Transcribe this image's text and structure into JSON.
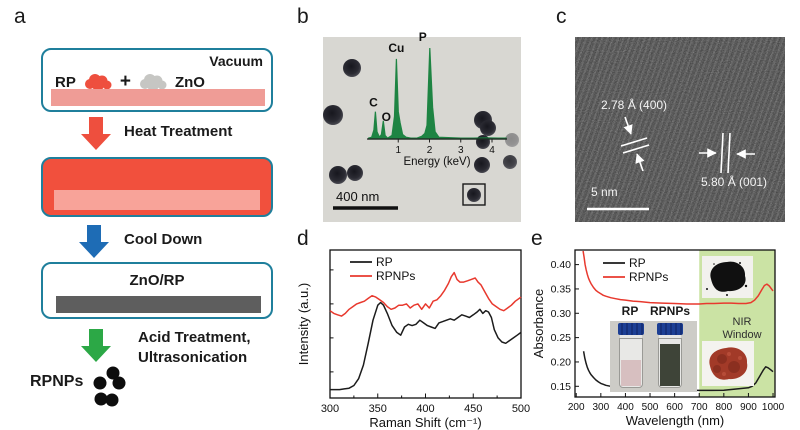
{
  "panels": {
    "a": {
      "label": "a",
      "vacuum": "Vacuum",
      "rp": "RP",
      "plus": "+",
      "zno": "ZnO",
      "heat": "Heat Treatment",
      "cool": "Cool Down",
      "znorp": "ZnO/RP",
      "acid1": "Acid Treatment,",
      "acid2": "Ultrasonication",
      "product": "RPNPs"
    },
    "b": {
      "label": "b",
      "scale_bar": "400 nm",
      "particles": [
        [
          29,
          31,
          9,
          1
        ],
        [
          10,
          78,
          10,
          1
        ],
        [
          15,
          138,
          9,
          1
        ],
        [
          32,
          136,
          8,
          1
        ],
        [
          160,
          83,
          9,
          1
        ],
        [
          165,
          91,
          8,
          1
        ],
        [
          160,
          105,
          7,
          1
        ],
        [
          189,
          103,
          7,
          0.4
        ],
        [
          159,
          128,
          8,
          1
        ],
        [
          187,
          125,
          7,
          0.85
        ],
        [
          151,
          158,
          7,
          1
        ]
      ],
      "highlight_box": [
        140,
        147,
        22,
        21
      ]
    },
    "c": {
      "label": "c",
      "spacing_1": "2.78 Å (400)",
      "spacing_2": "5.80 Å (001)",
      "scale_bar": "5 nm"
    },
    "d": {
      "label": "d"
    },
    "e": {
      "label": "e",
      "nir_line1": "NIR",
      "nir_line2": "Window",
      "vial_left": "RP",
      "vial_right": "RPNPs"
    }
  },
  "colors": {
    "teal_border": "#1f7f9c",
    "red": "#f1503d",
    "pink_layer": "#ef9c96",
    "blue_arrow": "#1e6cb5",
    "green_arrow": "#2ca846",
    "gray_layer": "#5e5e5e",
    "eds_green": "#15803c",
    "nir_fill": "#cbe3a4",
    "curve_black": "#1c1c1c",
    "curve_red": "#e8392e"
  },
  "chart_data": [
    {
      "name": "eds",
      "type": "line",
      "location": "panel-b-inset",
      "title": "",
      "xlabel": "Energy (keV)",
      "ylabel": "",
      "xlim": [
        0,
        4.48
      ],
      "xticks": [
        1,
        2,
        3,
        4
      ],
      "color": "#15803c",
      "peak_labels": [
        {
          "label": "C",
          "x": 0.27,
          "v": 0.3
        },
        {
          "label": "O",
          "x": 0.52,
          "v": 0.2
        },
        {
          "label": "Cu",
          "x": 0.94,
          "v": 0.88
        },
        {
          "label": "P",
          "x": 2.01,
          "v": 1.0
        }
      ],
      "x": [
        0.05,
        0.15,
        0.22,
        0.27,
        0.32,
        0.4,
        0.46,
        0.52,
        0.58,
        0.66,
        0.8,
        0.88,
        0.94,
        1.0,
        1.06,
        1.14,
        1.25,
        1.4,
        1.6,
        1.75,
        1.85,
        1.92,
        2.01,
        2.1,
        2.18,
        2.3,
        2.6,
        3.0,
        3.4,
        3.8,
        4.2,
        4.45
      ],
      "y": [
        0.01,
        0.02,
        0.1,
        0.3,
        0.08,
        0.02,
        0.05,
        0.2,
        0.04,
        0.01,
        0.04,
        0.25,
        0.88,
        0.3,
        0.18,
        0.05,
        0.02,
        0.01,
        0.01,
        0.03,
        0.06,
        0.15,
        1.0,
        0.35,
        0.08,
        0.02,
        0.015,
        0.01,
        0.01,
        0.012,
        0.01,
        0.01
      ]
    },
    {
      "name": "raman",
      "type": "line",
      "location": "panel-d",
      "title": "",
      "xlabel": "Raman Shift (cm⁻¹)",
      "ylabel": "Intensity (a.u.)",
      "xlim": [
        300,
        500
      ],
      "xticks": [
        300,
        350,
        400,
        450,
        500
      ],
      "legend_position": "top-left",
      "series": [
        {
          "name": "RP",
          "color": "#1c1c1c",
          "x": [
            300,
            305,
            310,
            315,
            320,
            325,
            330,
            335,
            340,
            345,
            350,
            353,
            356,
            360,
            365,
            370,
            374,
            378,
            382,
            386,
            390,
            394,
            398,
            402,
            406,
            410,
            414,
            418,
            422,
            426,
            430,
            434,
            438,
            442,
            446,
            450,
            454,
            457,
            460,
            463,
            466,
            469,
            472,
            476,
            480,
            484,
            488,
            492,
            496,
            500
          ],
          "y": [
            0.04,
            0.04,
            0.04,
            0.045,
            0.05,
            0.07,
            0.12,
            0.22,
            0.38,
            0.55,
            0.66,
            0.68,
            0.66,
            0.6,
            0.51,
            0.46,
            0.44,
            0.5,
            0.52,
            0.51,
            0.52,
            0.55,
            0.53,
            0.51,
            0.5,
            0.49,
            0.53,
            0.54,
            0.55,
            0.56,
            0.55,
            0.57,
            0.59,
            0.58,
            0.57,
            0.59,
            0.61,
            0.63,
            0.6,
            0.62,
            0.61,
            0.57,
            0.48,
            0.42,
            0.39,
            0.38,
            0.4,
            0.42,
            0.44,
            0.46
          ]
        },
        {
          "name": "RPNPs",
          "color": "#e8392e",
          "x": [
            300,
            304,
            308,
            312,
            316,
            320,
            324,
            328,
            332,
            336,
            340,
            344,
            348,
            352,
            356,
            360,
            364,
            368,
            372,
            376,
            380,
            384,
            388,
            392,
            396,
            400,
            404,
            408,
            412,
            416,
            420,
            424,
            427,
            430,
            433,
            436,
            440,
            444,
            448,
            452,
            455,
            458,
            462,
            466,
            470,
            474,
            478,
            482,
            486,
            490,
            494,
            500
          ],
          "y": [
            0.62,
            0.6,
            0.59,
            0.58,
            0.6,
            0.63,
            0.65,
            0.67,
            0.68,
            0.69,
            0.71,
            0.73,
            0.72,
            0.7,
            0.68,
            0.65,
            0.63,
            0.64,
            0.66,
            0.66,
            0.67,
            0.64,
            0.66,
            0.67,
            0.63,
            0.67,
            0.64,
            0.69,
            0.7,
            0.73,
            0.77,
            0.82,
            0.87,
            0.9,
            0.85,
            0.83,
            0.83,
            0.84,
            0.85,
            0.86,
            0.83,
            0.81,
            0.76,
            0.71,
            0.67,
            0.65,
            0.63,
            0.62,
            0.64,
            0.66,
            0.69,
            0.72
          ]
        }
      ]
    },
    {
      "name": "absorbance",
      "type": "line",
      "location": "panel-e",
      "title": "",
      "xlabel": "Wavelength (nm)",
      "ylabel": "Absorbance",
      "xlim": [
        195,
        1008
      ],
      "ylim": [
        0.128,
        0.43
      ],
      "xticks": [
        200,
        300,
        400,
        500,
        600,
        700,
        800,
        900,
        1000
      ],
      "yticks": [
        0.15,
        0.2,
        0.25,
        0.3,
        0.35,
        0.4
      ],
      "legend_position": "top-left",
      "annotations": {
        "nir_window": {
          "x0": 700,
          "x1": 1008,
          "label": "NIR Window",
          "fill": "#cbe3a4"
        }
      },
      "series": [
        {
          "name": "RP",
          "color": "#1c1c1c",
          "x": [
            230,
            235,
            240,
            245,
            250,
            255,
            260,
            270,
            280,
            290,
            300,
            310,
            320,
            340,
            360,
            380,
            400,
            430,
            460,
            500,
            550,
            600,
            650,
            700,
            750,
            800,
            840,
            870,
            900,
            915,
            930,
            945,
            960,
            970,
            980,
            990,
            1000
          ],
          "y": [
            0.222,
            0.208,
            0.197,
            0.189,
            0.183,
            0.178,
            0.174,
            0.168,
            0.163,
            0.159,
            0.156,
            0.154,
            0.152,
            0.15,
            0.148,
            0.147,
            0.146,
            0.145,
            0.1445,
            0.144,
            0.143,
            0.1425,
            0.142,
            0.1415,
            0.1415,
            0.142,
            0.144,
            0.1455,
            0.147,
            0.15,
            0.157,
            0.17,
            0.183,
            0.19,
            0.188,
            0.184,
            0.18
          ]
        },
        {
          "name": "RPNPs",
          "color": "#e8392e",
          "x": [
            228,
            232,
            236,
            240,
            245,
            250,
            255,
            260,
            270,
            280,
            290,
            300,
            310,
            320,
            340,
            360,
            380,
            400,
            430,
            460,
            500,
            550,
            600,
            650,
            700,
            730,
            760,
            800,
            830,
            860,
            890,
            910,
            925,
            940,
            955,
            965,
            975,
            985,
            1000
          ],
          "y": [
            0.428,
            0.415,
            0.4,
            0.39,
            0.38,
            0.372,
            0.366,
            0.361,
            0.353,
            0.347,
            0.343,
            0.34,
            0.337,
            0.335,
            0.332,
            0.33,
            0.328,
            0.327,
            0.325,
            0.324,
            0.322,
            0.321,
            0.32,
            0.319,
            0.319,
            0.32,
            0.32,
            0.321,
            0.321,
            0.32,
            0.32,
            0.322,
            0.327,
            0.336,
            0.349,
            0.357,
            0.36,
            0.356,
            0.346
          ]
        }
      ]
    }
  ]
}
